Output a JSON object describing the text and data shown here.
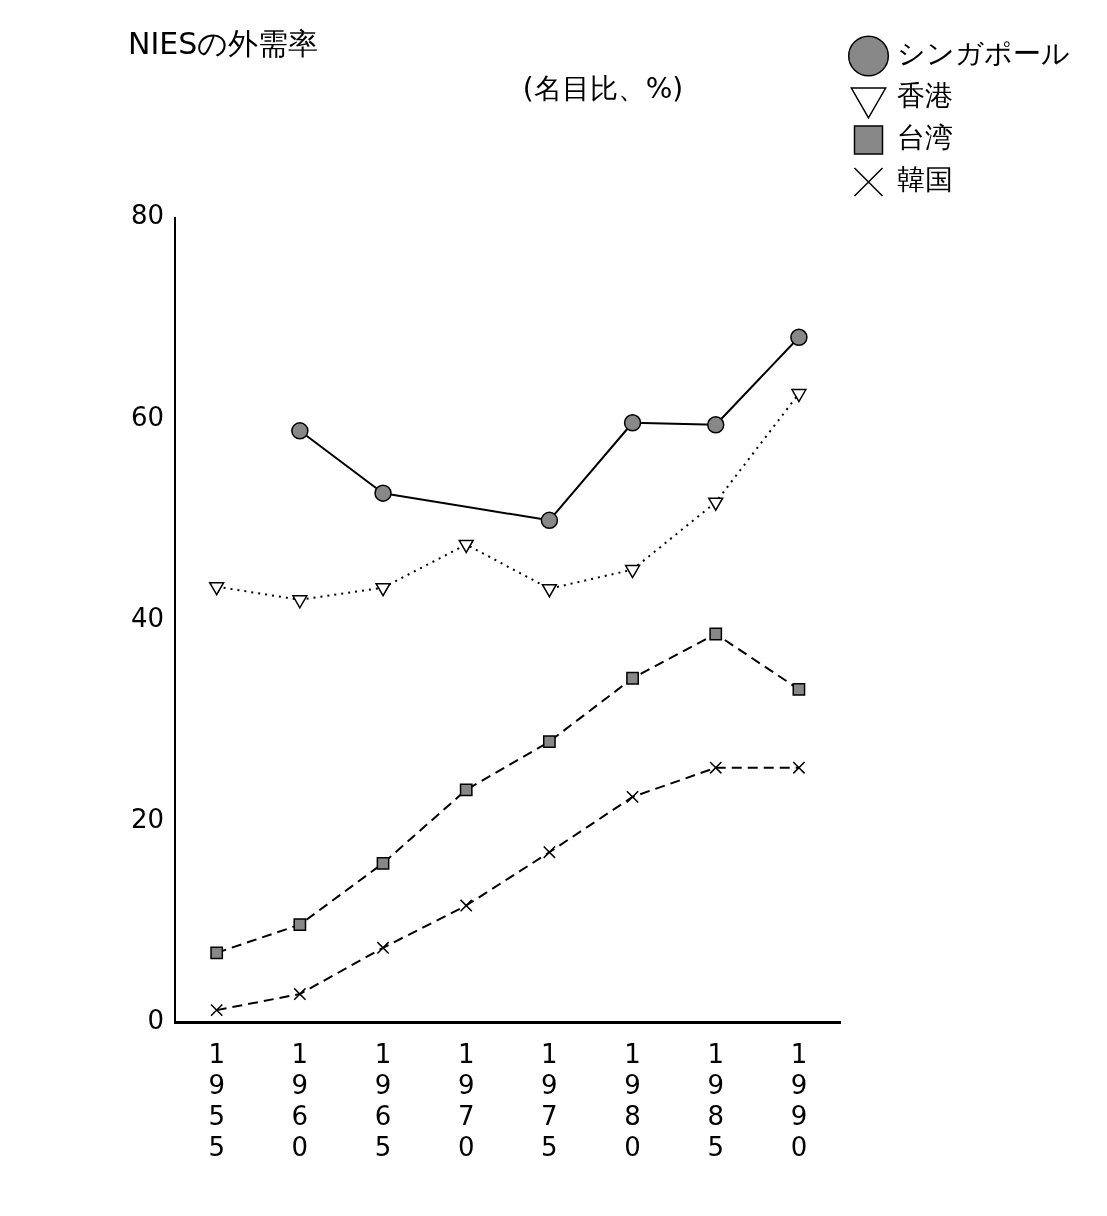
{
  "chart_data": {
    "type": "line",
    "title": "NIESの外需率",
    "subtitle": "(名目比、%)",
    "categories": [
      "1955",
      "1960",
      "1965",
      "1970",
      "1975",
      "1980",
      "1985",
      "1990"
    ],
    "series": [
      {
        "name": "シンガポール",
        "color": "#000000",
        "marker": "circle",
        "line_style": "solid",
        "values": [
          null,
          58.8,
          52.6,
          null,
          49.9,
          59.6,
          59.4,
          68.1
        ]
      },
      {
        "name": "香港",
        "color": "#000000",
        "marker": "triangle",
        "line_style": "dotted",
        "values": [
          43.3,
          42.0,
          43.2,
          47.5,
          43.1,
          45.0,
          51.7,
          62.5
        ]
      },
      {
        "name": "台湾",
        "color": "#000000",
        "marker": "square",
        "line_style": "dashed",
        "values": [
          6.9,
          9.7,
          15.8,
          23.1,
          27.9,
          34.2,
          38.6,
          33.1
        ]
      },
      {
        "name": "韓国",
        "color": "#000000",
        "marker": "cross",
        "line_style": "dashed",
        "values": [
          1.2,
          2.8,
          7.4,
          11.6,
          16.9,
          22.4,
          25.3,
          25.3
        ]
      }
    ],
    "ylim": [
      0,
      80
    ],
    "yticks": [
      0,
      20,
      40,
      60,
      80
    ],
    "grid": false,
    "legend": "top right"
  }
}
